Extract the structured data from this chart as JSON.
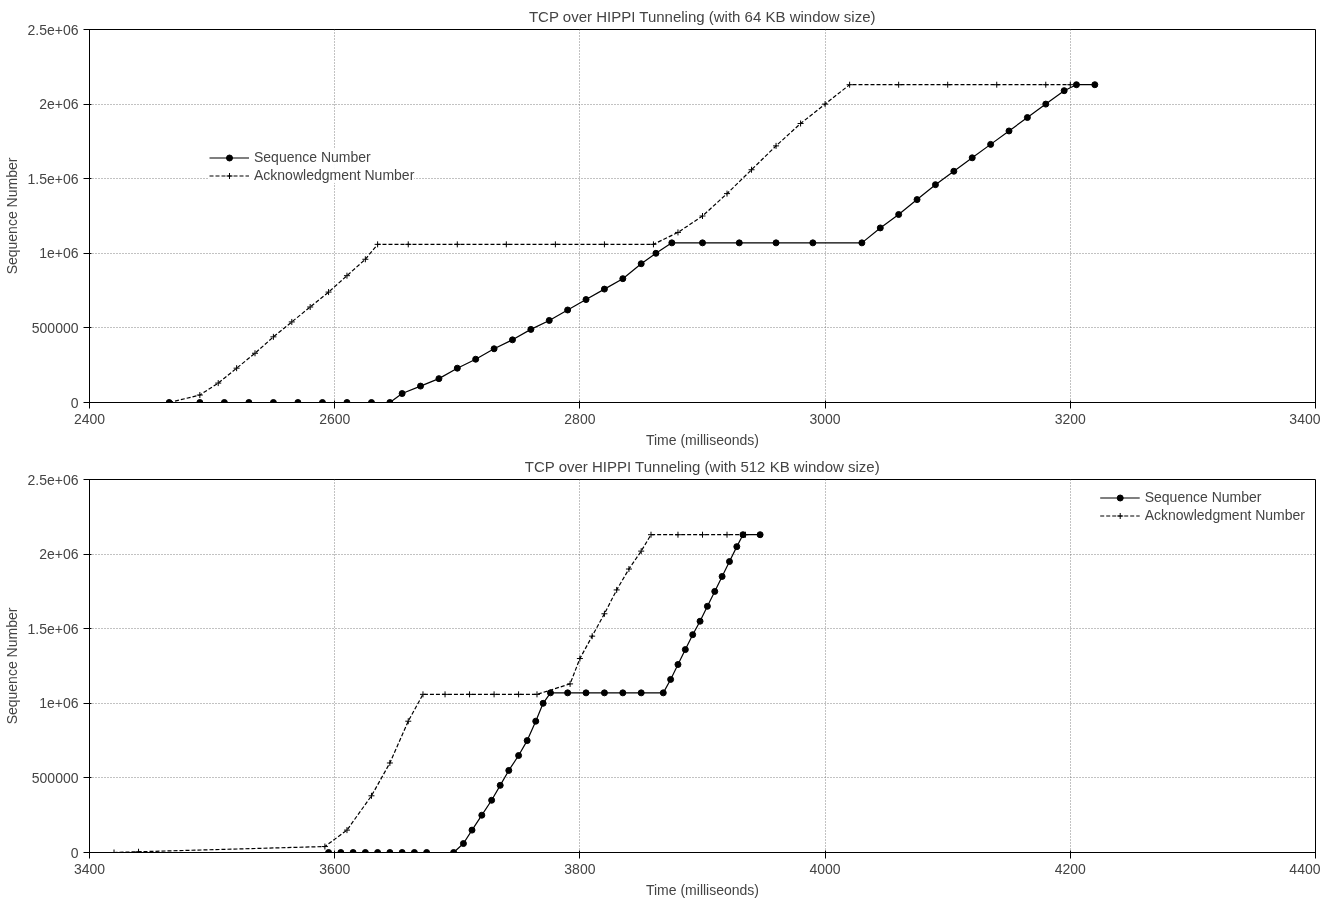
{
  "chart_data": [
    {
      "type": "line",
      "title": "TCP over HIPPI Tunneling (with 64 KB window size)",
      "xlabel": "Time (milliseonds)",
      "ylabel": "Sequence Number",
      "xlim": [
        2400,
        3400
      ],
      "xticks": [
        2400,
        2600,
        2800,
        3000,
        3200,
        3400
      ],
      "ylim": [
        0,
        2500000
      ],
      "yticks": [
        0,
        500000,
        {
          "value": 1000000,
          "label": "1e+06"
        },
        {
          "value": 1500000,
          "label": "1.5e+06"
        },
        {
          "value": 2000000,
          "label": "2e+06"
        },
        {
          "value": 2500000,
          "label": "2.5e+06"
        }
      ],
      "grid": true,
      "legend": "top left",
      "series": [
        {
          "name": "Sequence Number",
          "color": "#000000",
          "marker": "circle",
          "line_style": "solid",
          "x": [
            2465,
            2490,
            2510,
            2530,
            2550,
            2570,
            2590,
            2610,
            2630,
            2645,
            2655,
            2670,
            2685,
            2700,
            2715,
            2730,
            2745,
            2760,
            2775,
            2790,
            2805,
            2820,
            2835,
            2850,
            2862,
            2875,
            2900,
            2930,
            2960,
            2990,
            3030,
            3045,
            3060,
            3075,
            3090,
            3105,
            3120,
            3135,
            3150,
            3165,
            3180,
            3195,
            3205,
            3220
          ],
          "values": [
            0,
            0,
            0,
            0,
            0,
            0,
            0,
            0,
            0,
            0,
            60000,
            110000,
            160000,
            230000,
            290000,
            360000,
            420000,
            490000,
            550000,
            620000,
            690000,
            760000,
            830000,
            930000,
            1000000,
            1070000,
            1070000,
            1070000,
            1070000,
            1070000,
            1070000,
            1170000,
            1260000,
            1360000,
            1460000,
            1550000,
            1640000,
            1730000,
            1820000,
            1910000,
            2000000,
            2090000,
            2130000,
            2130000
          ]
        },
        {
          "name": "Acknowledgment Number",
          "color": "#000000",
          "marker": "cross",
          "line_style": "dashed",
          "x": [
            2465,
            2490,
            2505,
            2520,
            2535,
            2550,
            2565,
            2580,
            2595,
            2610,
            2625,
            2635,
            2660,
            2700,
            2740,
            2780,
            2820,
            2860,
            2880,
            2900,
            2920,
            2940,
            2960,
            2980,
            3000,
            3020,
            3060,
            3100,
            3140,
            3180,
            3200
          ],
          "values": [
            0,
            50000,
            130000,
            230000,
            330000,
            440000,
            540000,
            640000,
            740000,
            850000,
            960000,
            1060000,
            1060000,
            1060000,
            1060000,
            1060000,
            1060000,
            1060000,
            1140000,
            1250000,
            1400000,
            1560000,
            1720000,
            1870000,
            2000000,
            2130000,
            2130000,
            2130000,
            2130000,
            2130000,
            2130000
          ]
        }
      ]
    },
    {
      "type": "line",
      "title": "TCP over HIPPI Tunneling (with 512 KB window size)",
      "xlabel": "Time (milliseonds)",
      "ylabel": "Sequence Number",
      "xlim": [
        3400,
        4400
      ],
      "xticks": [
        3400,
        3600,
        3800,
        4000,
        4200,
        4400
      ],
      "ylim": [
        0,
        2500000
      ],
      "yticks": [
        0,
        500000,
        {
          "value": 1000000,
          "label": "1e+06"
        },
        {
          "value": 1500000,
          "label": "1.5e+06"
        },
        {
          "value": 2000000,
          "label": "2e+06"
        },
        {
          "value": 2500000,
          "label": "2.5e+06"
        }
      ],
      "grid": true,
      "legend": "top right",
      "series": [
        {
          "name": "Sequence Number",
          "color": "#000000",
          "marker": "circle",
          "line_style": "solid",
          "x": [
            3595,
            3605,
            3615,
            3625,
            3635,
            3645,
            3655,
            3665,
            3675,
            3697,
            3705,
            3712,
            3720,
            3728,
            3735,
            3742,
            3750,
            3757,
            3764,
            3770,
            3776,
            3790,
            3805,
            3820,
            3835,
            3850,
            3868,
            3874,
            3880,
            3886,
            3892,
            3898,
            3904,
            3910,
            3916,
            3922,
            3928,
            3933,
            3947
          ],
          "values": [
            0,
            0,
            0,
            0,
            0,
            0,
            0,
            0,
            0,
            0,
            60000,
            150000,
            250000,
            350000,
            450000,
            550000,
            650000,
            750000,
            880000,
            1000000,
            1070000,
            1070000,
            1070000,
            1070000,
            1070000,
            1070000,
            1070000,
            1160000,
            1260000,
            1360000,
            1460000,
            1550000,
            1650000,
            1750000,
            1850000,
            1950000,
            2050000,
            2130000,
            2130000
          ]
        },
        {
          "name": "Acknowledgment Number",
          "color": "#000000",
          "marker": "cross",
          "line_style": "dashed",
          "x": [
            3400,
            3420,
            3440,
            3592,
            3610,
            3630,
            3645,
            3660,
            3672,
            3690,
            3710,
            3730,
            3750,
            3765,
            3792,
            3800,
            3810,
            3820,
            3830,
            3840,
            3850,
            3858,
            3880,
            3900,
            3920,
            3935
          ],
          "values": [
            0,
            0,
            5000,
            40000,
            150000,
            380000,
            600000,
            880000,
            1060000,
            1060000,
            1060000,
            1060000,
            1060000,
            1060000,
            1130000,
            1300000,
            1450000,
            1600000,
            1760000,
            1900000,
            2020000,
            2130000,
            2130000,
            2130000,
            2130000,
            2130000
          ]
        }
      ]
    }
  ]
}
